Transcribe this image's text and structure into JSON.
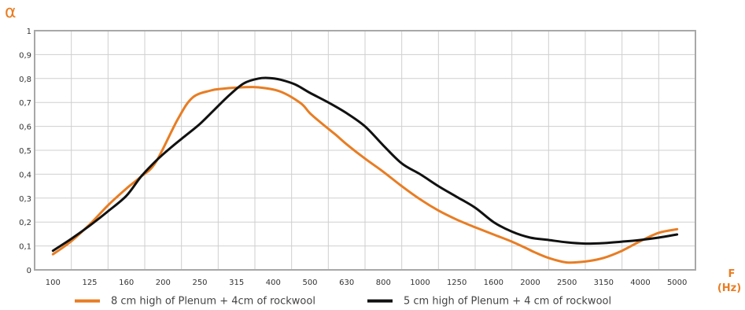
{
  "chart_data": {
    "type": "line",
    "ylabel": "α",
    "xlabel_line1": "F",
    "xlabel_line2": "(Hz)",
    "ylim": [
      0,
      1
    ],
    "yticks": [
      "0",
      "0,1",
      "0,2",
      "0,3",
      "0,4",
      "0,5",
      "0,6",
      "0,7",
      "0,8",
      "0,9",
      "1"
    ],
    "categories": [
      "100",
      "125",
      "160",
      "200",
      "250",
      "315",
      "400",
      "500",
      "630",
      "800",
      "1000",
      "1250",
      "1600",
      "2000",
      "2500",
      "3150",
      "4000",
      "5000"
    ],
    "grid": true,
    "legend_position": "bottom",
    "series": [
      {
        "name": "8 cm high of Plenum + 4cm of rockwool",
        "color": "#e87d23",
        "x": [
          0,
          0.5,
          1,
          1.5,
          2,
          2.4,
          2.8,
          3.4,
          3.8,
          4.3,
          4.6,
          5,
          5.5,
          5.9,
          6.2,
          6.5,
          6.8,
          7,
          7.3,
          7.7,
          8,
          8.5,
          9,
          9.5,
          10,
          10.5,
          11,
          11.5,
          12,
          12.5,
          12.9,
          13.1,
          13.5,
          14,
          14.5,
          15,
          15.5,
          16,
          16.5,
          17
        ],
        "values": [
          0.065,
          0.12,
          0.19,
          0.27,
          0.34,
          0.39,
          0.45,
          0.63,
          0.72,
          0.75,
          0.757,
          0.762,
          0.764,
          0.757,
          0.745,
          0.722,
          0.69,
          0.655,
          0.615,
          0.565,
          0.525,
          0.465,
          0.41,
          0.35,
          0.295,
          0.248,
          0.21,
          0.178,
          0.148,
          0.118,
          0.09,
          0.075,
          0.05,
          0.031,
          0.035,
          0.05,
          0.08,
          0.12,
          0.155,
          0.17
        ]
      },
      {
        "name": "5 cm high of Plenum + 4 cm of rockwool",
        "color": "#111111",
        "x": [
          0,
          0.5,
          1,
          1.5,
          2,
          2.4,
          2.8,
          3.2,
          3.6,
          4,
          4.4,
          4.8,
          5.2,
          5.6,
          5.9,
          6.2,
          6.6,
          7,
          7.5,
          8,
          8.5,
          9,
          9.5,
          10,
          10.5,
          11,
          11.5,
          12,
          12.5,
          13,
          13.5,
          14,
          14.5,
          15,
          15.5,
          16,
          16.5,
          17
        ],
        "values": [
          0.08,
          0.13,
          0.185,
          0.245,
          0.31,
          0.39,
          0.455,
          0.51,
          0.56,
          0.61,
          0.67,
          0.73,
          0.78,
          0.8,
          0.802,
          0.795,
          0.775,
          0.74,
          0.7,
          0.655,
          0.6,
          0.52,
          0.445,
          0.4,
          0.35,
          0.305,
          0.26,
          0.2,
          0.16,
          0.135,
          0.125,
          0.115,
          0.11,
          0.112,
          0.118,
          0.125,
          0.135,
          0.148
        ]
      }
    ]
  }
}
